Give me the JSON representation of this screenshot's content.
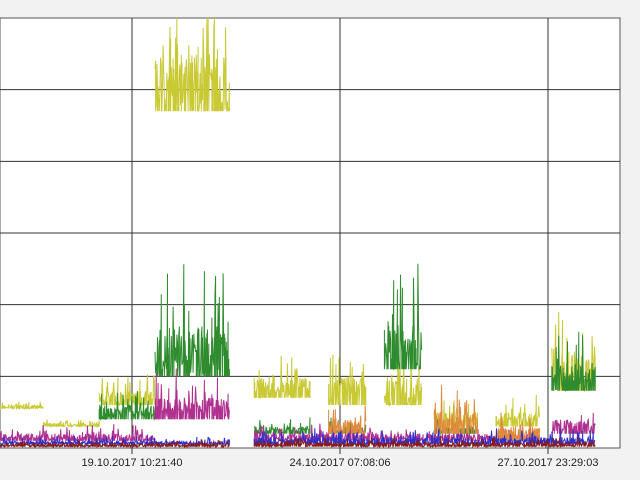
{
  "chart_data": {
    "type": "line",
    "title": "",
    "xlabel": "",
    "ylabel": "",
    "grid": true,
    "x_tick_labels": [
      "19.10.2017 10:21:40",
      "24.10.2017 07:08:06",
      "27.10.2017 23:29:03"
    ],
    "y_ticks": [
      1,
      2,
      3,
      4,
      5
    ],
    "ylim": [
      0,
      6
    ],
    "series": [
      {
        "color": "#c9c934",
        "segments": [
          {
            "x": [
              0,
              0.07
            ],
            "y": [
              0.55,
              0.6
            ]
          },
          {
            "x": [
              0.07,
              0.16
            ],
            "y": [
              0.3,
              0.35
            ]
          },
          {
            "x": [
              0.16,
              0.25
            ],
            "y": [
              0.6,
              0.8
            ]
          },
          {
            "x": [
              0.25,
              0.37
            ],
            "y": [
              4.7,
              5.5
            ]
          },
          {
            "x": [
              0.41,
              0.5
            ],
            "y": [
              0.7,
              1.0
            ]
          },
          {
            "x": [
              0.53,
              0.59
            ],
            "y": [
              0.6,
              1.0
            ]
          },
          {
            "x": [
              0.62,
              0.68
            ],
            "y": [
              0.6,
              1.0
            ]
          },
          {
            "x": [
              0.7,
              0.77
            ],
            "y": [
              0.3,
              0.5
            ]
          },
          {
            "x": [
              0.8,
              0.87
            ],
            "y": [
              0.3,
              0.5
            ]
          },
          {
            "x": [
              0.89,
              0.96
            ],
            "y": [
              0.8,
              1.3
            ]
          }
        ]
      },
      {
        "color": "#2e8b2e",
        "segments": [
          {
            "x": [
              0.16,
              0.25
            ],
            "y": [
              0.4,
              0.6
            ]
          },
          {
            "x": [
              0.25,
              0.37
            ],
            "y": [
              1.0,
              1.7
            ]
          },
          {
            "x": [
              0.41,
              0.5
            ],
            "y": [
              0.2,
              0.3
            ]
          },
          {
            "x": [
              0.53,
              0.59
            ],
            "y": [
              0.2,
              0.3
            ]
          },
          {
            "x": [
              0.62,
              0.68
            ],
            "y": [
              1.1,
              1.8
            ]
          },
          {
            "x": [
              0.7,
              0.77
            ],
            "y": [
              0.2,
              0.3
            ]
          },
          {
            "x": [
              0.89,
              0.96
            ],
            "y": [
              0.8,
              1.2
            ]
          }
        ]
      },
      {
        "color": "#b03090",
        "segments": [
          {
            "x": [
              0,
              0.25
            ],
            "y": [
              0.1,
              0.2
            ]
          },
          {
            "x": [
              0.25,
              0.37
            ],
            "y": [
              0.4,
              0.7
            ]
          },
          {
            "x": [
              0.41,
              0.87
            ],
            "y": [
              0.1,
              0.2
            ]
          },
          {
            "x": [
              0.89,
              0.96
            ],
            "y": [
              0.2,
              0.4
            ]
          }
        ]
      },
      {
        "color": "#e08a3c",
        "segments": [
          {
            "x": [
              0.53,
              0.59
            ],
            "y": [
              0.2,
              0.4
            ]
          },
          {
            "x": [
              0.7,
              0.77
            ],
            "y": [
              0.2,
              0.5
            ]
          },
          {
            "x": [
              0.8,
              0.87
            ],
            "y": [
              0.1,
              0.3
            ]
          }
        ]
      },
      {
        "color": "#3030c8",
        "segments": [
          {
            "x": [
              0,
              0.37
            ],
            "y": [
              0.05,
              0.1
            ]
          },
          {
            "x": [
              0.41,
              0.96
            ],
            "y": [
              0.05,
              0.15
            ]
          }
        ]
      },
      {
        "color": "#8b1a1a",
        "segments": [
          {
            "x": [
              0,
              0.37
            ],
            "y": [
              0.02,
              0.06
            ]
          },
          {
            "x": [
              0.41,
              0.96
            ],
            "y": [
              0.02,
              0.08
            ]
          }
        ]
      }
    ]
  }
}
